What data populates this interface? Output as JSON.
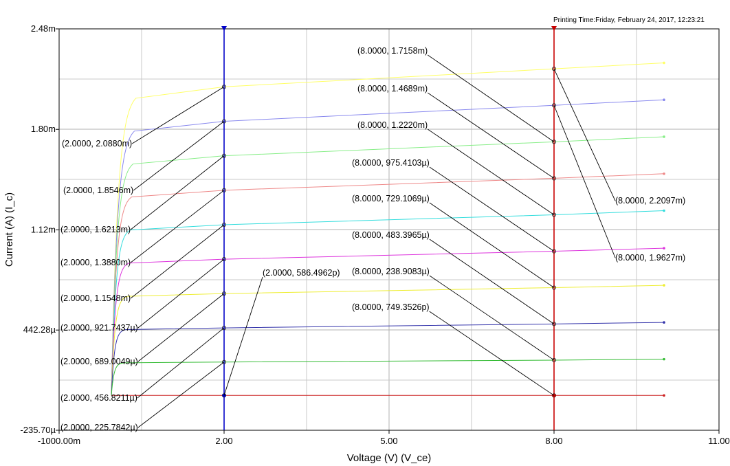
{
  "printing_time": "Printing Time:Friday, February 24, 2017, 12:23:21",
  "chart_data": {
    "type": "line",
    "xlabel": "Voltage (V) (V_ce)",
    "ylabel": "Current (A) (I_c)",
    "xlim": [
      -1.0,
      11.0
    ],
    "ylim": [
      -0.0002357,
      0.00248
    ],
    "x_ticks": [
      {
        "value": -1.0,
        "label": "-1000.00m"
      },
      {
        "value": 2.0,
        "label": "2.00"
      },
      {
        "value": 5.0,
        "label": "5.00"
      },
      {
        "value": 8.0,
        "label": "8.00"
      },
      {
        "value": 11.0,
        "label": "11.00"
      }
    ],
    "y_ticks": [
      {
        "value": 0.00248,
        "label": "2.48m"
      },
      {
        "value": 0.0018,
        "label": "1.80m"
      },
      {
        "value": 0.00112,
        "label": "1.12m"
      },
      {
        "value": 0.00044228,
        "label": "442.28µ"
      },
      {
        "value": -0.0002357,
        "label": "-235.70µ"
      }
    ],
    "grid": true,
    "cursors": [
      {
        "x": 2.0,
        "color": "#0000c8"
      },
      {
        "x": 8.0,
        "color": "#c80000"
      }
    ],
    "series": [
      {
        "color": "#ffff66",
        "v2": 0.002088,
        "v8": 0.0022097,
        "end": 0.00225
      },
      {
        "color": "#8888ee",
        "v2": 0.0018546,
        "v8": 0.0019627,
        "end": 0.002
      },
      {
        "color": "#88ee88",
        "v2": 0.0016213,
        "v8": 0.0017158,
        "end": 0.00175
      },
      {
        "color": "#ee8888",
        "v2": 0.001388,
        "v8": 0.0014689,
        "end": 0.0015
      },
      {
        "color": "#33dddd",
        "v2": 0.0011548,
        "v8": 0.001222,
        "end": 0.00125
      },
      {
        "color": "#dd33dd",
        "v2": 0.0009217437,
        "v8": 0.0009754103,
        "end": 0.000996
      },
      {
        "color": "#eeee33",
        "v2": 0.0006890049,
        "v8": 0.0007291069,
        "end": 0.000745
      },
      {
        "color": "#3333aa",
        "v2": 0.0004568211,
        "v8": 0.0004833965,
        "end": 0.000494
      },
      {
        "color": "#33bb33",
        "v2": 0.0002257842,
        "v8": 0.0002389083,
        "end": 0.000245
      },
      {
        "color": "#cc2222",
        "v2": 5.864962e-10,
        "v8": 7.493526e-10,
        "end": 0.0
      }
    ],
    "annotations_left": [
      "(2.0000, 2.0880m)",
      "(2.0000, 1.8546m)",
      "(2.0000, 1.6213m)",
      "(2.0000, 1.3880m)",
      "(2.0000, 1.1548m)",
      "(2.0000, 921.7437µ)",
      "(2.0000, 689.0049µ)",
      "(2.0000, 456.8211µ)",
      "(2.0000, 225.7842µ)",
      "(2.0000, 586.4962p)"
    ],
    "annotations_right": [
      "(8.0000, 2.2097m)",
      "(8.0000, 1.9627m)",
      "(8.0000, 1.7158m)",
      "(8.0000, 1.4689m)",
      "(8.0000, 1.2220m)",
      "(8.0000, 975.4103µ)",
      "(8.0000, 729.1069µ)",
      "(8.0000, 483.3965µ)",
      "(8.0000, 238.9083µ)",
      "(8.0000, 749.3526p)"
    ]
  }
}
